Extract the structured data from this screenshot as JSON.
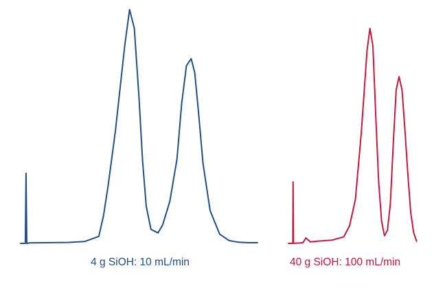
{
  "chart_data": [
    {
      "type": "line",
      "title": "",
      "caption": "4 g SiOH: 10 mL/min",
      "color": "#1f4e8c",
      "xlabel": "",
      "ylabel": "",
      "grid": false,
      "xlim": [
        0,
        100
      ],
      "ylim": [
        0,
        100
      ],
      "series": [
        {
          "x": [
            0,
            2.0,
            2.3,
            2.6,
            3.0,
            3.5,
            10,
            20,
            27,
            33,
            35,
            37,
            40,
            44,
            46,
            48,
            50,
            51.5,
            53,
            55,
            58,
            60,
            63,
            66,
            68,
            70,
            72,
            73.5,
            75,
            77,
            80,
            84,
            88,
            92,
            96,
            100
          ],
          "y": [
            0,
            0,
            30,
            0,
            0,
            0.2,
            0.3,
            0.4,
            0.8,
            3,
            12,
            25,
            48,
            85,
            100,
            92,
            62,
            35,
            16,
            6,
            4.5,
            8,
            18,
            36,
            60,
            76,
            79,
            73,
            57,
            34,
            14,
            4,
            1.2,
            0.5,
            0.3,
            0.3
          ]
        }
      ]
    },
    {
      "type": "line",
      "title": "",
      "caption": "40 g SiOH: 100 mL/min",
      "color": "#c8173a",
      "xlabel": "",
      "ylabel": "",
      "grid": false,
      "xlim": [
        0,
        100
      ],
      "ylim": [
        0,
        100
      ],
      "series": [
        {
          "x": [
            0,
            3.0,
            3.2,
            3.5,
            10,
            12,
            15,
            20,
            30,
            38,
            42,
            46,
            50,
            54,
            56,
            58,
            60,
            62,
            64,
            66,
            68,
            70,
            72,
            74,
            76,
            78,
            80,
            82,
            84,
            86,
            88
          ],
          "y": [
            0,
            0,
            28,
            0,
            0.3,
            2.5,
            0.7,
            1,
            1.5,
            3,
            8,
            20,
            50,
            88,
            98,
            90,
            58,
            28,
            10,
            3.5,
            6,
            18,
            45,
            70,
            76,
            70,
            52,
            32,
            14,
            5,
            1
          ]
        }
      ]
    }
  ]
}
